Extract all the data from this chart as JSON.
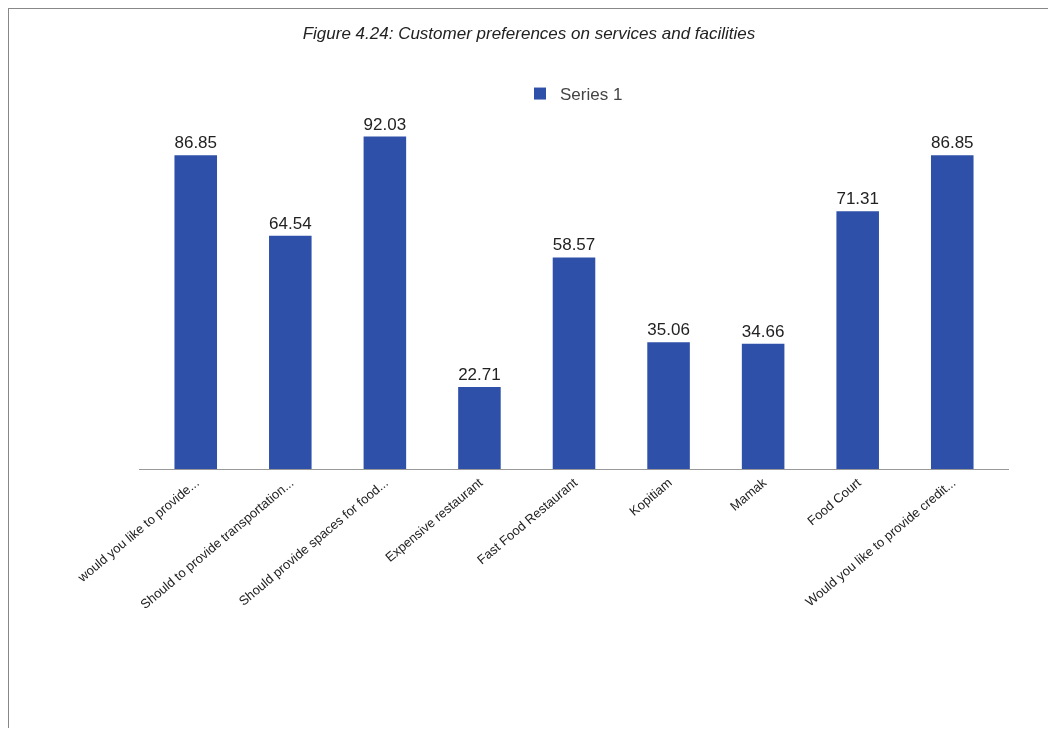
{
  "chart_data": {
    "type": "bar",
    "title": "Figure 4.24: Customer preferences on services and facilities",
    "categories": [
      "would you like to provide...",
      "Should to provide transportation...",
      "Should provide spaces for food...",
      "Expensive restaurant",
      "Fast Food Restaurant",
      "Kopitiam",
      "Mamak",
      "Food Court",
      "Would you like to provide credit..."
    ],
    "series": [
      {
        "name": "Series 1",
        "color": "#2f50a8",
        "values": [
          86.85,
          64.54,
          92.03,
          22.71,
          58.57,
          35.06,
          34.66,
          71.31,
          86.85
        ]
      }
    ],
    "data_labels": true,
    "legend": "top",
    "grid": false
  }
}
